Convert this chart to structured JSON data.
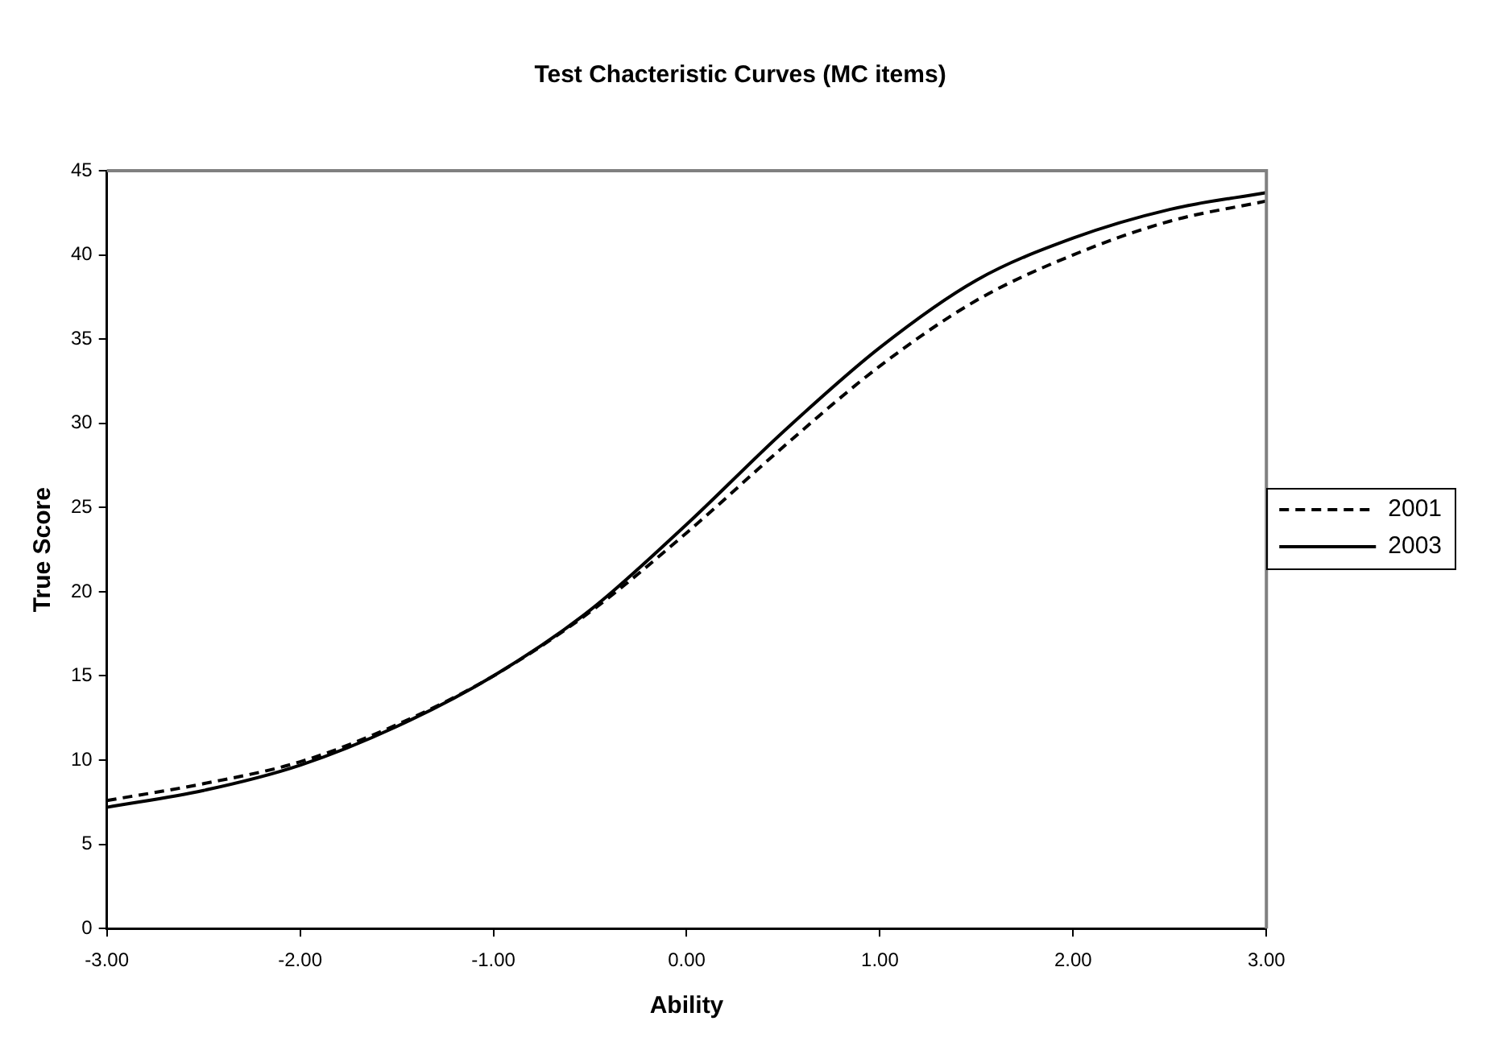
{
  "chart_data": {
    "type": "line",
    "title": "Test Chacteristic Curves (MC items)",
    "xlabel": "Ability",
    "ylabel": "True Score",
    "x": [
      -3,
      -2.5,
      -2,
      -1.5,
      -1,
      -0.5,
      0,
      0.5,
      1,
      1.5,
      2,
      2.5,
      3
    ],
    "series": [
      {
        "name": "2001",
        "color": "#000000",
        "line_style": "dashed",
        "values": [
          7.6,
          8.6,
          9.9,
          12.1,
          15,
          18.8,
          23.5,
          28.6,
          33.4,
          37.3,
          40,
          42,
          43.2
        ]
      },
      {
        "name": "2003",
        "color": "#000000",
        "line_style": "solid",
        "values": [
          7.2,
          8.2,
          9.7,
          12,
          15,
          18.9,
          24,
          29.5,
          34.5,
          38.5,
          41,
          42.7,
          43.7
        ]
      }
    ],
    "xlim": [
      -3,
      3
    ],
    "xticks": [
      {
        "value": -3,
        "label": "-3.00"
      },
      {
        "value": -2,
        "label": "-2.00"
      },
      {
        "value": -1,
        "label": "-1.00"
      },
      {
        "value": 0,
        "label": "0.00"
      },
      {
        "value": 1,
        "label": "1.00"
      },
      {
        "value": 2,
        "label": "2.00"
      },
      {
        "value": 3,
        "label": "3.00"
      }
    ],
    "ylim": [
      0,
      45
    ],
    "yticks": [
      0,
      5,
      10,
      15,
      20,
      25,
      30,
      35,
      40,
      45
    ],
    "grid": false,
    "legend": "right",
    "marker": "none"
  }
}
